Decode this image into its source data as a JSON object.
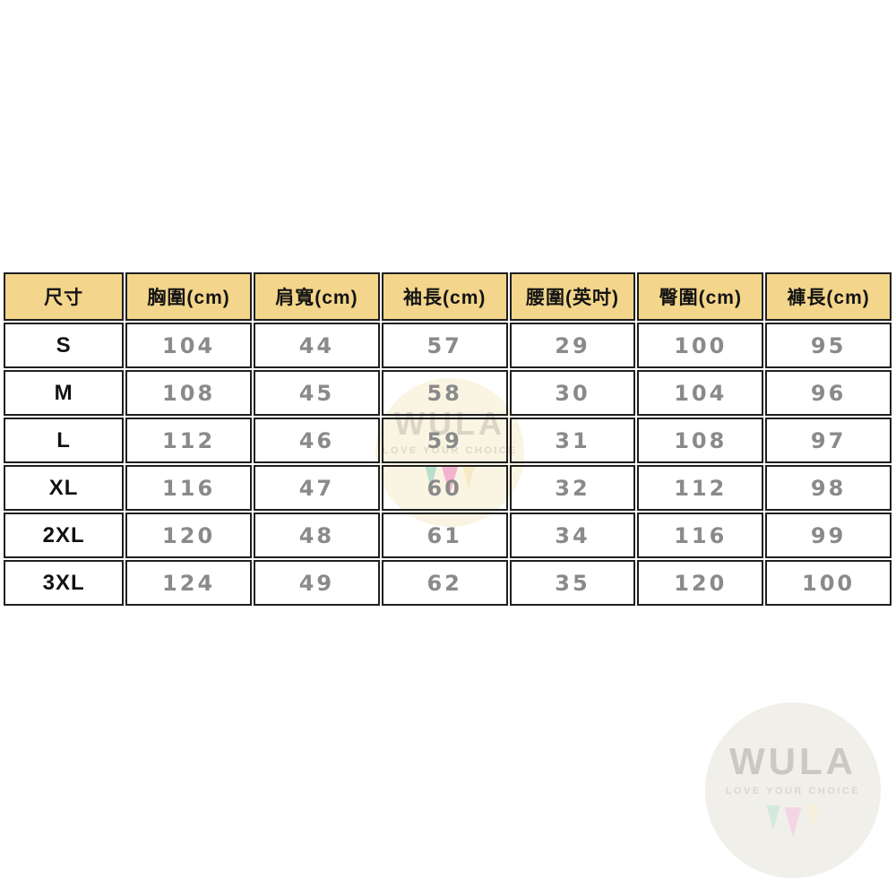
{
  "colors": {
    "header-bg": "#f3d58b",
    "border": "#1f1f1f",
    "size-text": "#111111",
    "value-text": "#8a8a8a",
    "wm-center-bg": "#faf4e2",
    "wm-center-text": "#dbd5c5",
    "wm-center-tagline": "#ded8c6",
    "wm-corner-bg": "#f0efea",
    "wm-corner-text": "#c9c8c1",
    "wm-corner-tagline": "#d9d7d0"
  },
  "chart_data": {
    "type": "table",
    "columns": [
      "尺寸",
      "胸圍(cm)",
      "肩寬(cm)",
      "袖長(cm)",
      "腰圍(英吋)",
      "臀圍(cm)",
      "褲長(cm)"
    ],
    "rows": [
      [
        "S",
        104,
        44,
        57,
        29,
        100,
        95
      ],
      [
        "M",
        108,
        45,
        58,
        30,
        104,
        96
      ],
      [
        "L",
        112,
        46,
        59,
        31,
        108,
        97
      ],
      [
        "XL",
        116,
        47,
        60,
        32,
        112,
        98
      ],
      [
        "2XL",
        120,
        48,
        61,
        34,
        116,
        99
      ],
      [
        "3XL",
        124,
        49,
        62,
        35,
        120,
        100
      ]
    ]
  },
  "watermark": {
    "brand": "WULA",
    "tagline": "LOVE YOUR CHOICE",
    "center_triangle_colors": [
      "#b7e0ca",
      "#f2b3cf",
      "#f6e9c3"
    ],
    "corner_triangle_colors": [
      "#d3e9dd",
      "#f3d6e3",
      "#f5eeda"
    ]
  }
}
